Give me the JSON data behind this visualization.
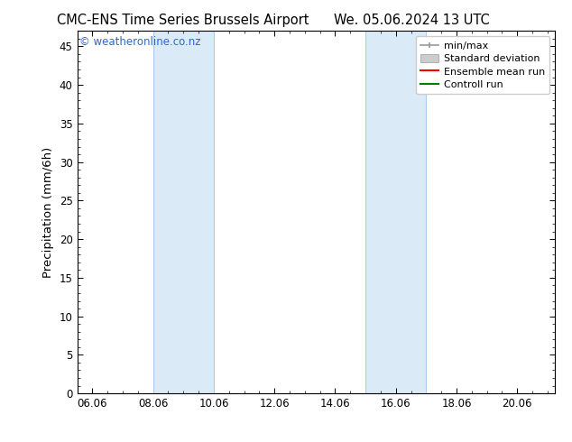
{
  "title_left": "CMC-ENS Time Series Brussels Airport",
  "title_right": "We. 05.06.2024 13 UTC",
  "ylabel": "Precipitation (mm/6h)",
  "watermark": "© weatheronline.co.nz",
  "x_ticks": [
    6.06,
    8.06,
    10.06,
    12.06,
    14.06,
    16.06,
    18.06,
    20.06
  ],
  "x_tick_labels": [
    "06.06",
    "08.06",
    "10.06",
    "12.06",
    "14.06",
    "16.06",
    "18.06",
    "20.06"
  ],
  "x_min": 5.56,
  "x_max": 21.3,
  "y_min": 0,
  "y_max": 47,
  "y_ticks": [
    0,
    5,
    10,
    15,
    20,
    25,
    30,
    35,
    40,
    45
  ],
  "shaded_regions": [
    {
      "x_start": 8.06,
      "x_end": 10.06,
      "color": "#daeaf7",
      "alpha": 1.0
    },
    {
      "x_start": 15.06,
      "x_end": 17.06,
      "color": "#daeaf7",
      "alpha": 1.0
    }
  ],
  "vertical_lines": [
    {
      "x": 8.06,
      "color": "#aaccee",
      "lw": 0.8
    },
    {
      "x": 10.06,
      "color": "#aaccee",
      "lw": 0.8
    },
    {
      "x": 15.06,
      "color": "#aaccee",
      "lw": 0.8
    },
    {
      "x": 17.06,
      "color": "#aaccee",
      "lw": 0.8
    }
  ],
  "background_color": "#ffffff",
  "plot_bg_color": "#ffffff",
  "title_fontsize": 10.5,
  "tick_fontsize": 8.5,
  "label_fontsize": 9.5,
  "watermark_color": "#3366cc",
  "legend_fontsize": 8,
  "minmax_color": "#999999",
  "std_face_color": "#cccccc",
  "std_edge_color": "#999999",
  "ensemble_color": "red",
  "control_color": "green"
}
